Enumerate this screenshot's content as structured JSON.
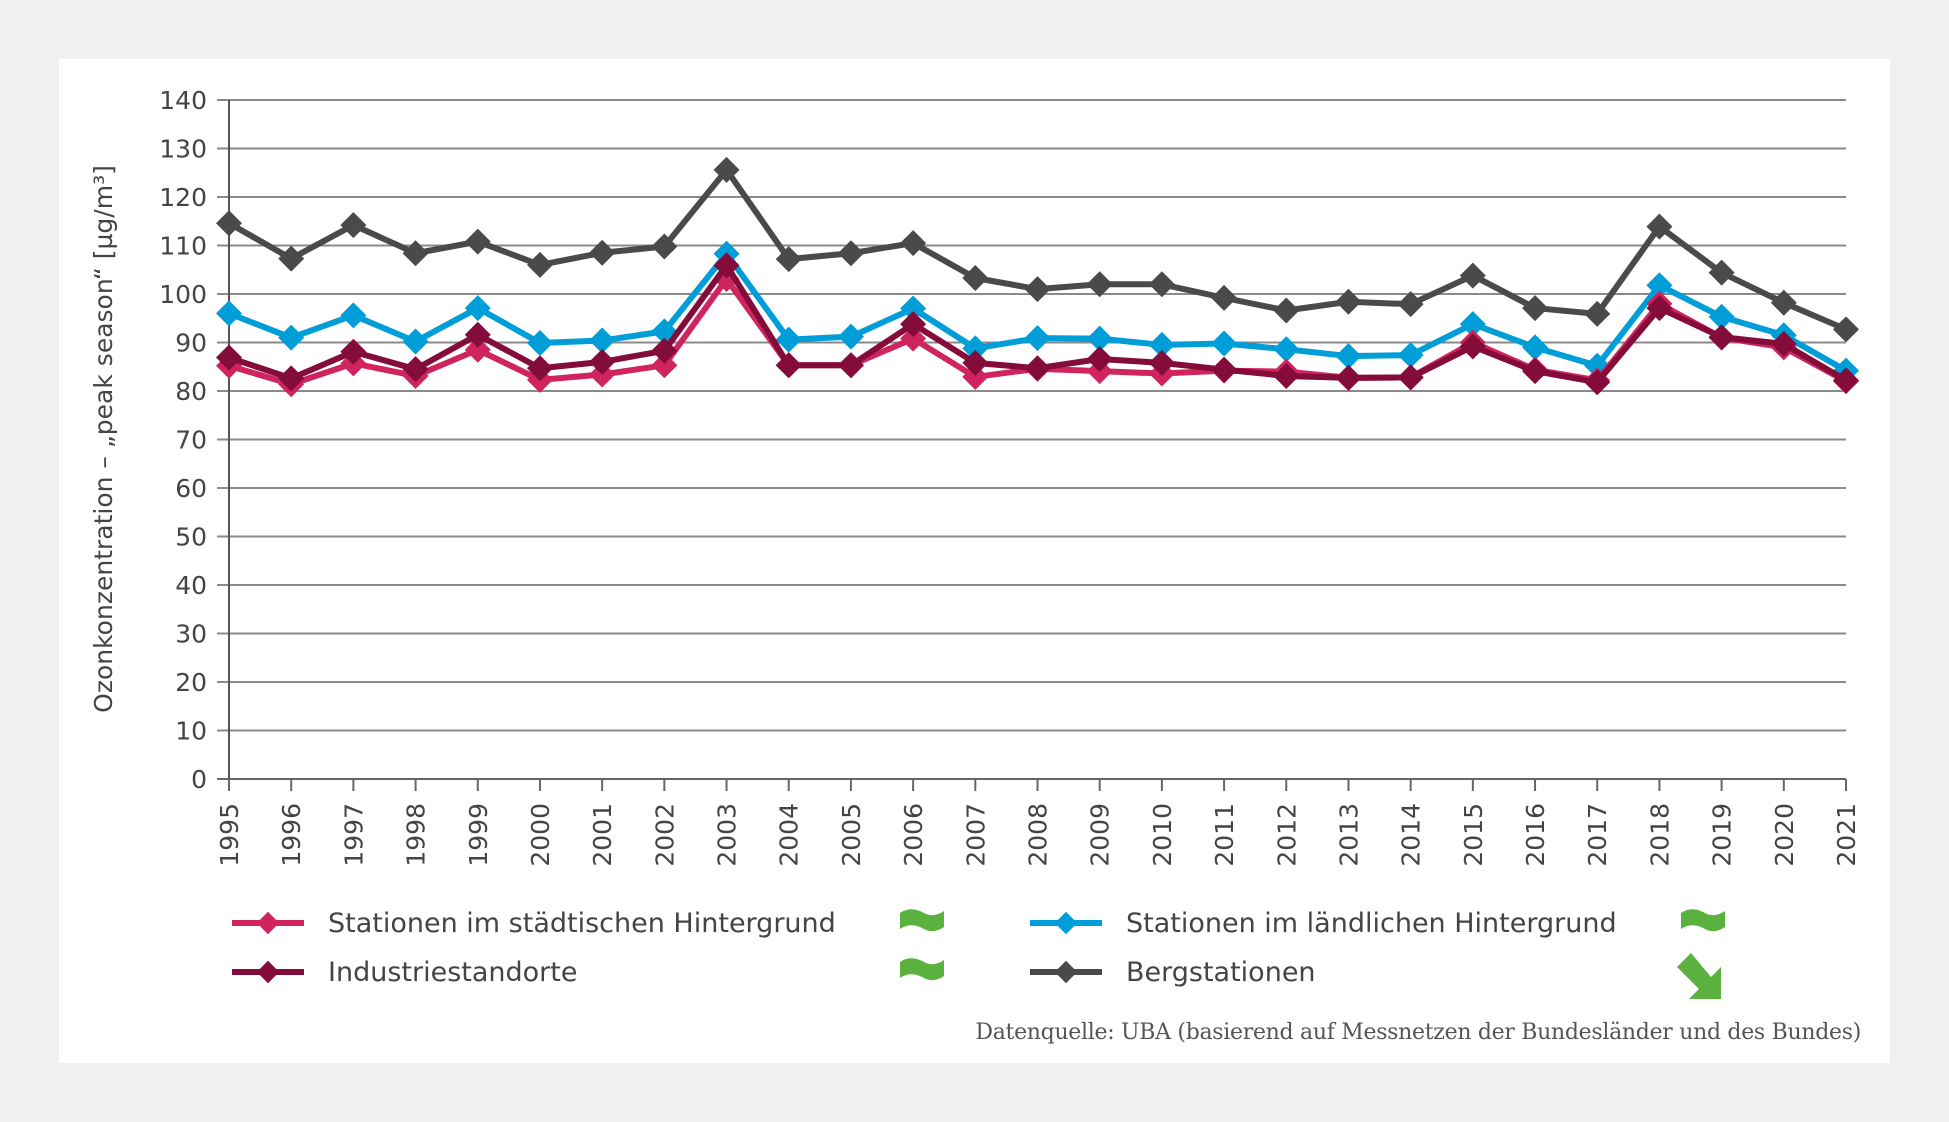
{
  "chart_data": {
    "type": "line",
    "title": "",
    "xlabel": "",
    "ylabel": "Ozonkonzentration – „peak season“ [µg/m³]",
    "ylim": [
      0,
      140
    ],
    "yticks": [
      0,
      10,
      20,
      30,
      40,
      50,
      60,
      70,
      80,
      90,
      100,
      110,
      120,
      130,
      140
    ],
    "grid": true,
    "legend_position": "bottom",
    "x": [
      "1995",
      "1996",
      "1997",
      "1998",
      "1999",
      "2000",
      "2001",
      "2002",
      "2003",
      "2004",
      "2005",
      "2006",
      "2007",
      "2008",
      "2009",
      "2010",
      "2011",
      "2012",
      "2013",
      "2014",
      "2015",
      "2016",
      "2017",
      "2018",
      "2019",
      "2020",
      "2021"
    ],
    "series": [
      {
        "name": "Stationen im städtischen Hintergrund",
        "color": "#d0245f",
        "trend": "no-trend",
        "values": [
          85.2,
          81.4,
          85.7,
          83.1,
          88.5,
          82.3,
          83.4,
          85.3,
          103.1,
          85.3,
          85.3,
          90.8,
          82.9,
          84.6,
          84.1,
          83.6,
          84.2,
          84.0,
          82.7,
          82.8,
          90.0,
          84.4,
          82.2,
          98.0,
          91.0,
          89.0,
          82.0
        ]
      },
      {
        "name": "Stationen im ländlichen Hintergrund",
        "color": "#009ed8",
        "trend": "no-trend",
        "values": [
          96.0,
          91.0,
          95.6,
          90.2,
          97.1,
          89.9,
          90.4,
          92.3,
          108.3,
          90.6,
          91.2,
          97.0,
          88.8,
          90.9,
          90.8,
          89.5,
          89.8,
          88.6,
          87.2,
          87.4,
          93.8,
          89.0,
          85.2,
          101.8,
          95.3,
          91.5,
          84.2
        ]
      },
      {
        "name": "Industriestandorte",
        "color": "#830c3a",
        "trend": "no-trend",
        "values": [
          86.9,
          82.6,
          88.1,
          84.5,
          91.6,
          84.7,
          86.0,
          88.3,
          105.9,
          85.3,
          85.3,
          93.8,
          85.8,
          84.7,
          86.6,
          85.8,
          84.4,
          83.1,
          82.7,
          82.8,
          89.2,
          84.1,
          81.8,
          97.1,
          91.1,
          89.7,
          82.2
        ]
      },
      {
        "name": "Bergstationen",
        "color": "#4a4a48",
        "trend": "decreasing",
        "values": [
          114.6,
          107.3,
          114.2,
          108.4,
          110.8,
          106.0,
          108.5,
          109.8,
          125.6,
          107.2,
          108.4,
          110.5,
          103.3,
          101.0,
          102.0,
          102.0,
          99.2,
          96.6,
          98.4,
          97.9,
          103.8,
          97.1,
          95.9,
          113.9,
          104.4,
          98.2,
          92.7
        ]
      }
    ],
    "source": "Datenquelle: UBA (basierend auf Messnetzen der Bundesländer und des Bundes)"
  },
  "legend": {
    "items": [
      {
        "label": "Stationen im städtischen Hintergrund",
        "trend_icon": "approx-equal-icon"
      },
      {
        "label": "Industriestandorte",
        "trend_icon": "approx-equal-icon"
      },
      {
        "label": "Stationen im ländlichen Hintergrund",
        "trend_icon": "approx-equal-icon"
      },
      {
        "label": "Bergstationen",
        "trend_icon": "arrow-down-right-icon"
      }
    ],
    "trend_color": "#5ab13d"
  }
}
